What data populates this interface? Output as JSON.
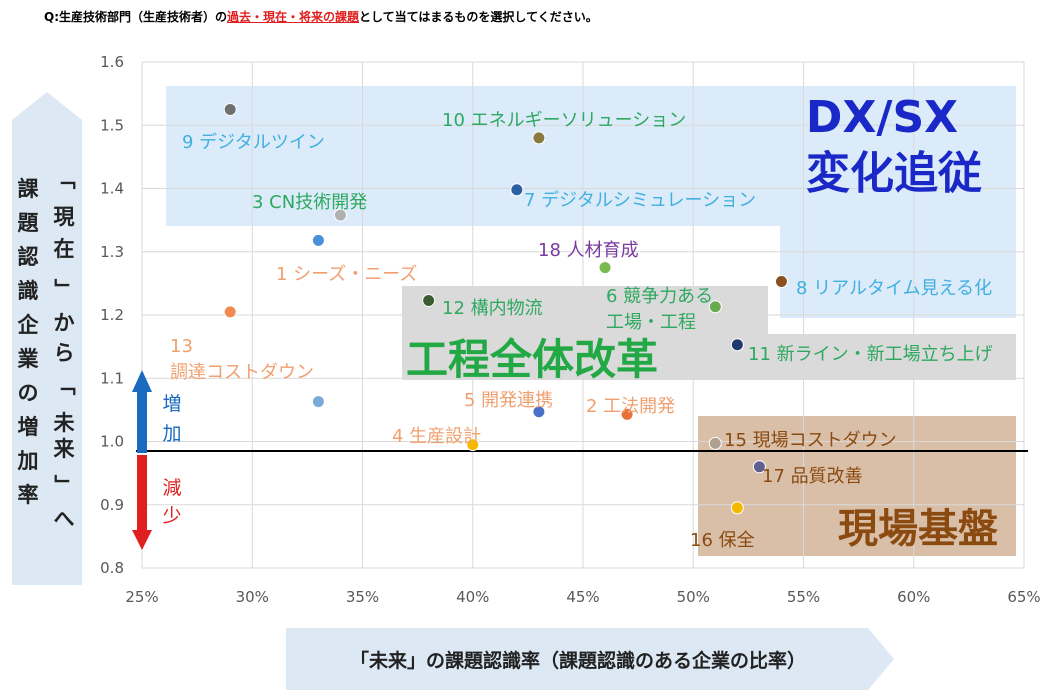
{
  "question": {
    "prefix": "Q:生産技術部門（生産技術者）の",
    "highlight": "過去・現在・将来の課題",
    "suffix": "として当てはまるものを選択してください。"
  },
  "side_axis": {
    "col1": "課題認識企業の増加率",
    "col2": "「現在」から「未来」へ",
    "increase": "増加",
    "decrease": "減少"
  },
  "x_banner": "「未来」の課題認識率（課題認識のある企業の比率）",
  "zones": {
    "dx": {
      "line1": "DX/SX",
      "line2": "変化追従"
    },
    "koutei": "工程全体改革",
    "genba": "現場基盤"
  },
  "chart_data": {
    "type": "scatter",
    "xlabel": "「未来」の課題認識率（課題認識のある企業の比率）",
    "ylabel": "課題認識企業の増加率",
    "xlim": [
      0.25,
      0.65
    ],
    "ylim": [
      0.8,
      1.6
    ],
    "x_ticks": [
      "25%",
      "30%",
      "35%",
      "40%",
      "45%",
      "50%",
      "55%",
      "60%",
      "65%"
    ],
    "y_ticks": [
      "0.8",
      "0.9",
      "1.0",
      "1.1",
      "1.2",
      "1.3",
      "1.4",
      "1.5",
      "1.6"
    ],
    "grid": true,
    "reference_line_y": 0.985,
    "points": [
      {
        "id": 1,
        "label": "1 シーズ・ニーズ",
        "x": 0.33,
        "y": 1.318,
        "color": "#4a90d9",
        "label_color": "#f0a070"
      },
      {
        "id": 2,
        "label": "2 工法開発",
        "x": 0.47,
        "y": 1.043,
        "color": "#e8703a",
        "label_color": "#f0a070"
      },
      {
        "id": 3,
        "label": "3 CN技術開発",
        "x": 0.34,
        "y": 1.358,
        "color": "#b0b0b0",
        "label_color": "#2fa860"
      },
      {
        "id": 4,
        "label": "4 生産設計",
        "x": 0.4,
        "y": 0.995,
        "color": "#f5b800",
        "label_color": "#f0a070"
      },
      {
        "id": 5,
        "label": "5 開発連携",
        "x": 0.43,
        "y": 1.047,
        "color": "#4a70c8",
        "label_color": "#f0a070"
      },
      {
        "id": 6,
        "label": "6 競争力ある工場・工程",
        "x": 0.51,
        "y": 1.213,
        "color": "#6aaa50",
        "label_color": "#2fa860"
      },
      {
        "id": 7,
        "label": "7 デジタルシミュレーション",
        "x": 0.42,
        "y": 1.398,
        "color": "#2a60a0",
        "label_color": "#40b0e0"
      },
      {
        "id": 8,
        "label": "8 リアルタイム見える化",
        "x": 0.54,
        "y": 1.253,
        "color": "#8a5020",
        "label_color": "#40b0e0"
      },
      {
        "id": 9,
        "label": "9 デジタルツイン",
        "x": 0.29,
        "y": 1.525,
        "color": "#707070",
        "label_color": "#40b0e0"
      },
      {
        "id": 10,
        "label": "10 エネルギーソリューション",
        "x": 0.43,
        "y": 1.48,
        "color": "#8a7a40",
        "label_color": "#2fa860"
      },
      {
        "id": 11,
        "label": "11 新ライン・新工場立ち上げ",
        "x": 0.52,
        "y": 1.153,
        "color": "#203a70",
        "label_color": "#2fa860"
      },
      {
        "id": 12,
        "label": "12 構内物流",
        "x": 0.38,
        "y": 1.223,
        "color": "#3a5a30",
        "label_color": "#2fa860"
      },
      {
        "id": 13,
        "label": "13 調達コストダウン",
        "x": 0.29,
        "y": 1.205,
        "color": "#f08a50",
        "label_color": "#f0a070"
      },
      {
        "id": 14,
        "label": "",
        "x": 0.33,
        "y": 1.063,
        "color": "#7aaad8",
        "label_color": "#f0a070"
      },
      {
        "id": 15,
        "label": "15 現場コストダウン",
        "x": 0.51,
        "y": 0.997,
        "color": "#b0a090",
        "label_color": "#8a4a10"
      },
      {
        "id": 16,
        "label": "16 保全",
        "x": 0.52,
        "y": 0.895,
        "color": "#f5b800",
        "label_color": "#8a4a10"
      },
      {
        "id": 17,
        "label": "17 品質改善",
        "x": 0.53,
        "y": 0.96,
        "color": "#606090",
        "label_color": "#8a4a10"
      },
      {
        "id": 18,
        "label": "18 人材育成",
        "x": 0.46,
        "y": 1.275,
        "color": "#7ab850",
        "label_color": "#7a3aa0"
      }
    ]
  },
  "colors": {
    "dx_zone": "#dcebfa",
    "koutei_zone": "#d6d6d6",
    "genba_zone": "#d9bfa8",
    "dx_text": "#1a28c8",
    "koutei_text": "#22a845",
    "genba_text": "#8a4a10",
    "arrow_up": "#1a6ac0",
    "arrow_down": "#e02020",
    "side_panel": "#dce8f4",
    "grid": "#d9d9d9"
  }
}
